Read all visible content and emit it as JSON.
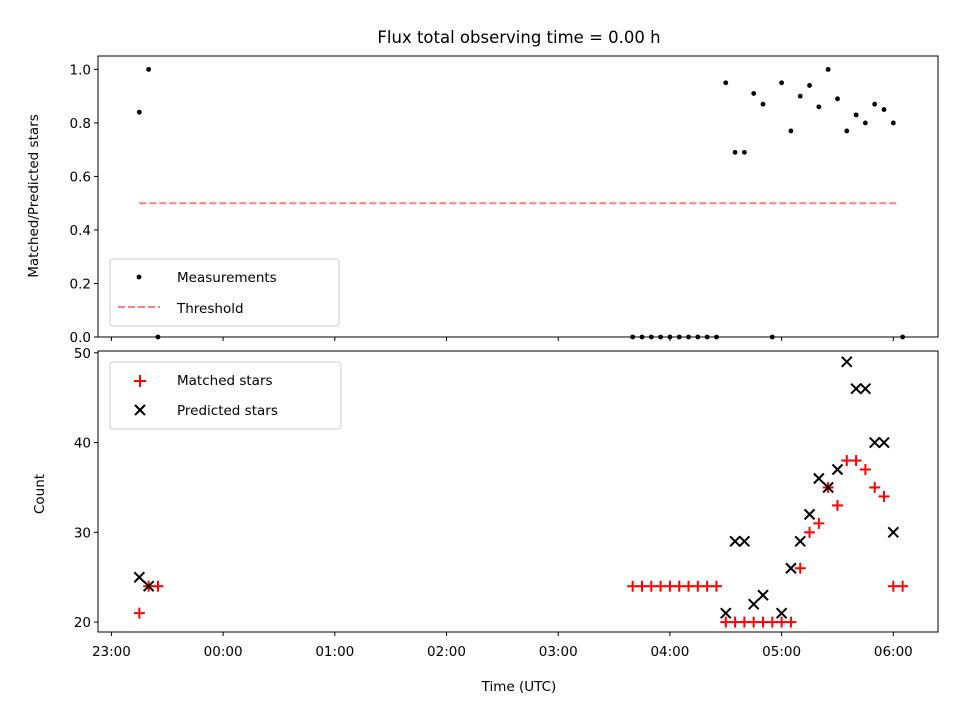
{
  "title": "Flux total observing time = 0.00 h",
  "chart_data": [
    {
      "type": "scatter",
      "panel": "top",
      "ylabel": "Matched/Predicted stars",
      "ylim": [
        0,
        1.05
      ],
      "yticks": [
        0.0,
        0.2,
        0.4,
        0.6,
        0.8,
        1.0
      ],
      "ytick_labels": [
        "0.0",
        "0.2",
        "0.4",
        "0.6",
        "0.8",
        "1.0"
      ],
      "xlim_hours": [
        -1.12,
        6.4
      ],
      "legend_position": "lower-left",
      "legend": [
        {
          "label": "Measurements",
          "marker": "dot",
          "color": "#000000"
        },
        {
          "label": "Threshold",
          "marker": "dashed-line",
          "color": "#ff7f7f"
        }
      ],
      "threshold": {
        "value": 0.5,
        "x_range": [
          "23:15",
          "06:02"
        ]
      },
      "measurements": [
        {
          "x": "23:15",
          "y": 0.84
        },
        {
          "x": "23:20",
          "y": 1.0
        },
        {
          "x": "23:25",
          "y": 0.0
        },
        {
          "x": "03:40",
          "y": 0.0
        },
        {
          "x": "03:45",
          "y": 0.0
        },
        {
          "x": "03:50",
          "y": 0.0
        },
        {
          "x": "03:55",
          "y": 0.0
        },
        {
          "x": "04:00",
          "y": 0.0
        },
        {
          "x": "04:05",
          "y": 0.0
        },
        {
          "x": "04:10",
          "y": 0.0
        },
        {
          "x": "04:15",
          "y": 0.0
        },
        {
          "x": "04:20",
          "y": 0.0
        },
        {
          "x": "04:25",
          "y": 0.0
        },
        {
          "x": "04:30",
          "y": 0.95
        },
        {
          "x": "04:35",
          "y": 0.69
        },
        {
          "x": "04:40",
          "y": 0.69
        },
        {
          "x": "04:45",
          "y": 0.91
        },
        {
          "x": "04:50",
          "y": 0.87
        },
        {
          "x": "04:55",
          "y": 0.0
        },
        {
          "x": "05:00",
          "y": 0.95
        },
        {
          "x": "05:05",
          "y": 0.77
        },
        {
          "x": "05:10",
          "y": 0.9
        },
        {
          "x": "05:15",
          "y": 0.94
        },
        {
          "x": "05:20",
          "y": 0.86
        },
        {
          "x": "05:25",
          "y": 1.0
        },
        {
          "x": "05:30",
          "y": 0.89
        },
        {
          "x": "05:35",
          "y": 0.77
        },
        {
          "x": "05:40",
          "y": 0.83
        },
        {
          "x": "05:45",
          "y": 0.8
        },
        {
          "x": "05:50",
          "y": 0.87
        },
        {
          "x": "05:55",
          "y": 0.85
        },
        {
          "x": "06:00",
          "y": 0.8
        },
        {
          "x": "06:05",
          "y": 0.0
        }
      ]
    },
    {
      "type": "scatter",
      "panel": "bottom",
      "ylabel": "Count",
      "xlabel": "Time (UTC)",
      "ylim": [
        18.9,
        50.2
      ],
      "yticks": [
        20,
        30,
        40,
        50
      ],
      "ytick_labels": [
        "20",
        "30",
        "40",
        "50"
      ],
      "xlim_hours": [
        -1.12,
        6.4
      ],
      "xticks_hours": [
        -1,
        0,
        1,
        2,
        3,
        4,
        5,
        6
      ],
      "xtick_labels": [
        "23:00",
        "00:00",
        "01:00",
        "02:00",
        "03:00",
        "04:00",
        "05:00",
        "06:00"
      ],
      "legend_position": "upper-left",
      "series": [
        {
          "name": "Matched stars",
          "marker": "plus",
          "color": "#ff0000",
          "points": [
            {
              "x": "23:15",
              "y": 21
            },
            {
              "x": "23:20",
              "y": 24
            },
            {
              "x": "23:25",
              "y": 24
            },
            {
              "x": "03:40",
              "y": 24
            },
            {
              "x": "03:45",
              "y": 24
            },
            {
              "x": "03:50",
              "y": 24
            },
            {
              "x": "03:55",
              "y": 24
            },
            {
              "x": "04:00",
              "y": 24
            },
            {
              "x": "04:05",
              "y": 24
            },
            {
              "x": "04:10",
              "y": 24
            },
            {
              "x": "04:15",
              "y": 24
            },
            {
              "x": "04:20",
              "y": 24
            },
            {
              "x": "04:25",
              "y": 24
            },
            {
              "x": "04:30",
              "y": 20
            },
            {
              "x": "04:35",
              "y": 20
            },
            {
              "x": "04:40",
              "y": 20
            },
            {
              "x": "04:45",
              "y": 20
            },
            {
              "x": "04:50",
              "y": 20
            },
            {
              "x": "04:55",
              "y": 20
            },
            {
              "x": "05:00",
              "y": 20
            },
            {
              "x": "05:05",
              "y": 20
            },
            {
              "x": "05:10",
              "y": 26
            },
            {
              "x": "05:15",
              "y": 30
            },
            {
              "x": "05:20",
              "y": 31
            },
            {
              "x": "05:25",
              "y": 35
            },
            {
              "x": "05:30",
              "y": 33
            },
            {
              "x": "05:35",
              "y": 38
            },
            {
              "x": "05:40",
              "y": 38
            },
            {
              "x": "05:45",
              "y": 37
            },
            {
              "x": "05:50",
              "y": 35
            },
            {
              "x": "05:55",
              "y": 34
            },
            {
              "x": "06:00",
              "y": 24
            },
            {
              "x": "06:05",
              "y": 24
            }
          ]
        },
        {
          "name": "Predicted stars",
          "marker": "x",
          "color": "#000000",
          "points": [
            {
              "x": "23:15",
              "y": 25
            },
            {
              "x": "23:20",
              "y": 24
            },
            {
              "x": "04:30",
              "y": 21
            },
            {
              "x": "04:35",
              "y": 29
            },
            {
              "x": "04:40",
              "y": 29
            },
            {
              "x": "04:45",
              "y": 22
            },
            {
              "x": "04:50",
              "y": 23
            },
            {
              "x": "05:00",
              "y": 21
            },
            {
              "x": "05:05",
              "y": 26
            },
            {
              "x": "05:10",
              "y": 29
            },
            {
              "x": "05:15",
              "y": 32
            },
            {
              "x": "05:20",
              "y": 36
            },
            {
              "x": "05:25",
              "y": 35
            },
            {
              "x": "05:30",
              "y": 37
            },
            {
              "x": "05:35",
              "y": 49
            },
            {
              "x": "05:40",
              "y": 46
            },
            {
              "x": "05:45",
              "y": 46
            },
            {
              "x": "05:50",
              "y": 40
            },
            {
              "x": "05:55",
              "y": 40
            },
            {
              "x": "06:00",
              "y": 30
            }
          ]
        }
      ]
    }
  ]
}
